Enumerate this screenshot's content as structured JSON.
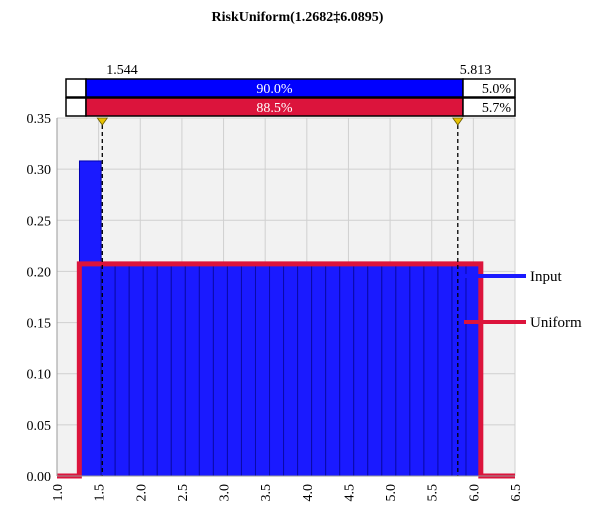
{
  "chart_data": {
    "type": "bar",
    "title": "RiskUniform(1.2682‡6.0895)",
    "xlabel": "",
    "ylabel": "",
    "xlim": [
      1.0,
      6.5
    ],
    "ylim": [
      0.0,
      0.35
    ],
    "x_ticks": [
      "1.0",
      "1.5",
      "2.0",
      "2.5",
      "3.0",
      "3.5",
      "4.0",
      "4.5",
      "5.0",
      "5.5",
      "6.0",
      "6.5"
    ],
    "y_ticks": [
      "0.00",
      "0.05",
      "0.10",
      "0.15",
      "0.20",
      "0.25",
      "0.30",
      "0.35"
    ],
    "grid": true,
    "legend_position": "right",
    "series": [
      {
        "name": "Input",
        "kind": "histogram",
        "color": "#1a1aff",
        "bins": [
          {
            "x0": 1.27,
            "x1": 1.53,
            "density": 0.308
          },
          {
            "x0": 1.53,
            "x1": 6.08,
            "density": 0.207,
            "note": "uniform bars"
          }
        ]
      },
      {
        "name": "Uniform",
        "kind": "density-line",
        "color": "#dc143c",
        "x": [
          1.0,
          1.2682,
          1.2682,
          6.0895,
          6.0895,
          6.5
        ],
        "y": [
          0.0,
          0.0,
          0.2074,
          0.2074,
          0.0,
          0.0
        ]
      }
    ],
    "delimiters": {
      "left": {
        "value": 1.544,
        "label": "1.544"
      },
      "right": {
        "value": 5.813,
        "label": "5.813"
      }
    },
    "bands": [
      {
        "series": "Input",
        "left": "",
        "middle": "90.0%",
        "right": "5.0%",
        "color": "#0000ff"
      },
      {
        "series": "Uniform",
        "left": "",
        "middle": "88.5%",
        "right": "5.7%",
        "color": "#dc143c"
      }
    ]
  }
}
